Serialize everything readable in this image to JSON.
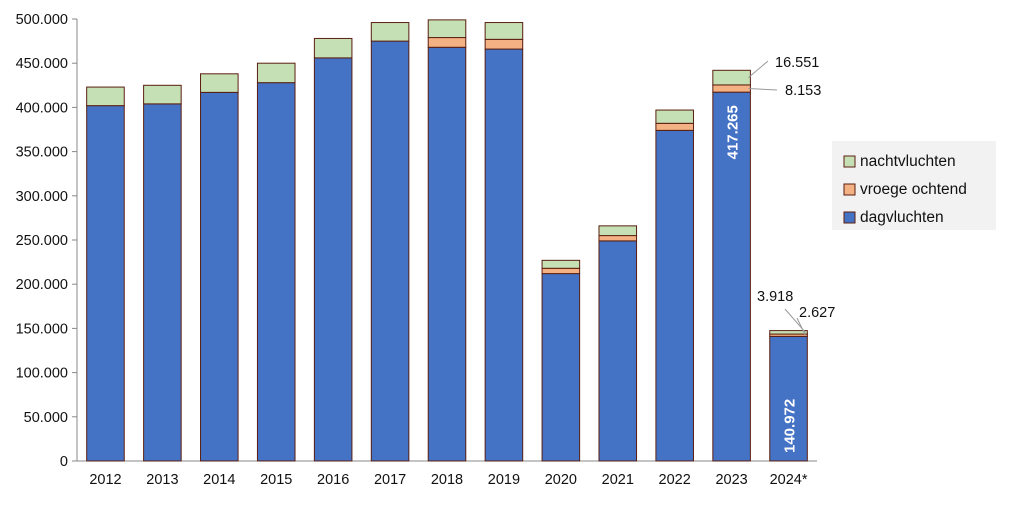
{
  "chart_data": {
    "type": "bar",
    "stacked": true,
    "categories": [
      "2012",
      "2013",
      "2014",
      "2015",
      "2016",
      "2017",
      "2018",
      "2019",
      "2020",
      "2021",
      "2022",
      "2023",
      "2024*"
    ],
    "series": [
      {
        "name": "dagvluchten",
        "color": "#4472c4",
        "values": [
          402000,
          404000,
          417000,
          428000,
          456000,
          475000,
          468000,
          466000,
          212000,
          249000,
          374000,
          417265,
          140972
        ]
      },
      {
        "name": "vroege ochtend",
        "color": "#f4b183",
        "values": [
          0,
          0,
          0,
          0,
          0,
          0,
          11000,
          11000,
          6000,
          6000,
          8000,
          8153,
          2627
        ]
      },
      {
        "name": "nachtvluchten",
        "color": "#c5e0b4",
        "values": [
          21000,
          21000,
          21000,
          22000,
          22000,
          21000,
          20000,
          19000,
          9000,
          11000,
          15000,
          16551,
          3918
        ]
      }
    ],
    "title": "",
    "xlabel": "",
    "ylabel": "",
    "ylim": [
      0,
      500000
    ],
    "yticks": [
      "0",
      "50.000",
      "100.000",
      "150.000",
      "200.000",
      "250.000",
      "300.000",
      "350.000",
      "400.000",
      "450.000",
      "500.000"
    ],
    "grid": false,
    "legend_position": "right",
    "legend": [
      "nachtvluchten",
      "vroege ochtend",
      "dagvluchten"
    ],
    "annotations": [
      {
        "category": "2023",
        "series": "dagvluchten",
        "text": "417.265",
        "style": "inside-vertical"
      },
      {
        "category": "2023",
        "series": "vroege ochtend",
        "text": "8.153",
        "style": "callout"
      },
      {
        "category": "2023",
        "series": "nachtvluchten",
        "text": "16.551",
        "style": "callout"
      },
      {
        "category": "2024*",
        "series": "dagvluchten",
        "text": "140.972",
        "style": "inside-vertical"
      },
      {
        "category": "2024*",
        "series": "vroege ochtend",
        "text": "2.627",
        "style": "callout"
      },
      {
        "category": "2024*",
        "series": "nachtvluchten",
        "text": "3.918",
        "style": "callout"
      }
    ]
  }
}
